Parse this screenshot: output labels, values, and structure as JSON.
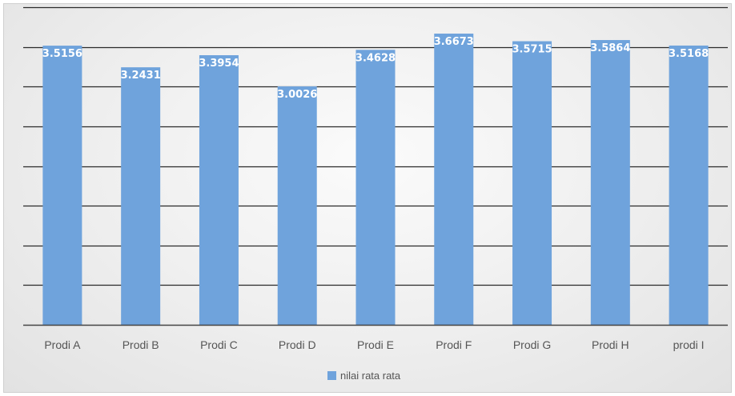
{
  "chart_data": {
    "type": "bar",
    "categories": [
      "Prodi A",
      "Prodi B",
      "Prodi C",
      "Prodi D",
      "Prodi E",
      "Prodi F",
      "Prodi G",
      "Prodi H",
      "prodi I"
    ],
    "series": [
      {
        "name": "nilai rata rata",
        "values": [
          3.5156,
          3.2431,
          3.3954,
          3.0026,
          3.4628,
          3.6673,
          3.5715,
          3.5864,
          3.5168
        ],
        "value_labels": [
          "3.5156",
          "3.2431",
          "3.3954",
          "3.0026",
          "3.4628",
          "3.6673",
          "3.5715",
          "3.5864",
          "3.5168"
        ],
        "color": "#6fa3dc"
      }
    ],
    "ylim": [
      0,
      4
    ],
    "y_gridline_step": 0.5,
    "grid": true,
    "y_tick_labels_visible": false,
    "legend_position": "bottom"
  },
  "legend": {
    "label": "nilai rata rata",
    "color": "#6fa3dc"
  }
}
